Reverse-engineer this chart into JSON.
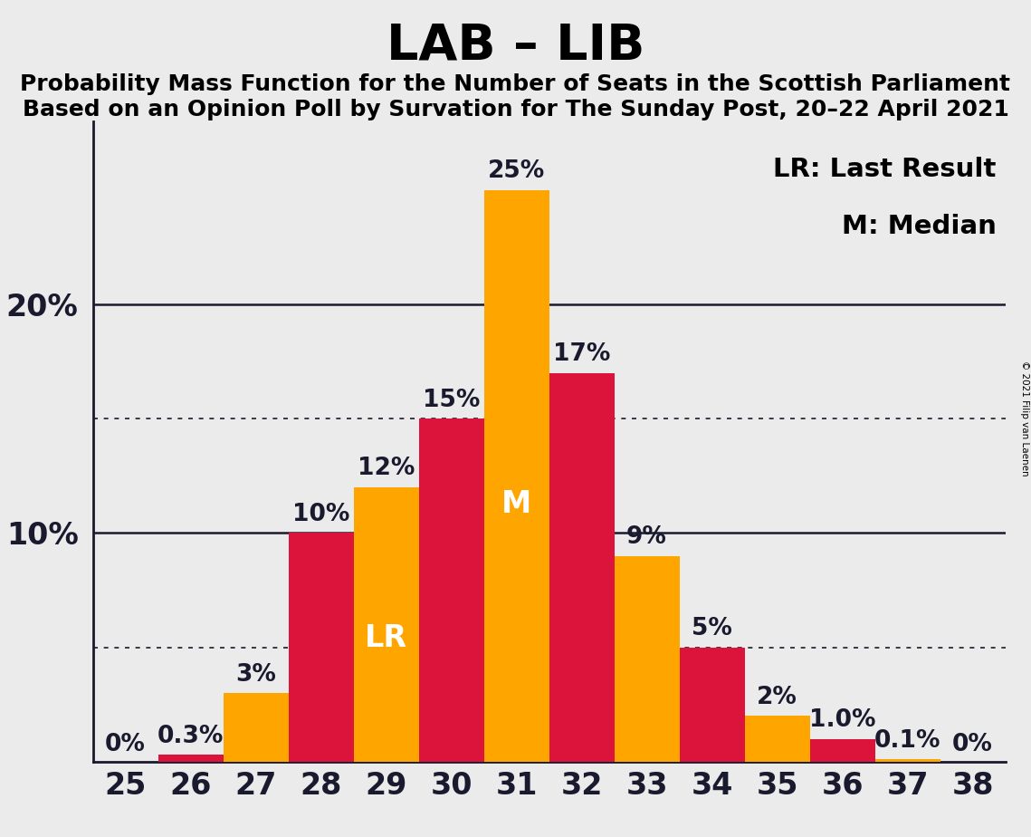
{
  "title": "LAB – LIB",
  "subtitle1": "Probability Mass Function for the Number of Seats in the Scottish Parliament",
  "subtitle2": "Based on an Opinion Poll by Survation for The Sunday Post, 20–22 April 2021",
  "copyright": "© 2021 Filip van Laenen",
  "seats": [
    25,
    26,
    27,
    28,
    29,
    30,
    31,
    32,
    33,
    34,
    35,
    36,
    37,
    38
  ],
  "values": [
    0.0,
    0.3,
    3.0,
    10.0,
    12.0,
    15.0,
    25.0,
    17.0,
    9.0,
    5.0,
    2.0,
    1.0,
    0.1,
    0.0
  ],
  "colors": [
    "#DC143C",
    "#DC143C",
    "#FFA500",
    "#DC143C",
    "#FFA500",
    "#DC143C",
    "#FFA500",
    "#DC143C",
    "#FFA500",
    "#DC143C",
    "#FFA500",
    "#DC143C",
    "#FFA500",
    "#FFA500"
  ],
  "labels": [
    "0%",
    "0.3%",
    "3%",
    "10%",
    "12%",
    "15%",
    "25%",
    "17%",
    "9%",
    "5%",
    "2%",
    "1.0%",
    "0.1%",
    "0%"
  ],
  "label_visible": [
    true,
    true,
    true,
    true,
    true,
    true,
    true,
    true,
    true,
    true,
    true,
    true,
    true,
    true
  ],
  "red_color": "#DC143C",
  "orange_color": "#FFA500",
  "background_color": "#EBEBEB",
  "bar_width": 1.0,
  "ylim_max": 28,
  "solid_yticks": [
    10,
    20
  ],
  "dotted_yticks": [
    5,
    15
  ],
  "ytick_positions": [
    10,
    20
  ],
  "ytick_labels": [
    "10%",
    "20%"
  ],
  "lr_index": 4,
  "m_index": 6,
  "lr_label": "LR",
  "m_label": "M",
  "legend_text1": "LR: Last Result",
  "legend_text2": "M: Median",
  "title_fontsize": 40,
  "subtitle_fontsize": 18,
  "tick_fontsize": 24,
  "bar_label_fontsize": 19,
  "legend_fontsize": 21,
  "bar_inner_label_fontsize": 24,
  "axis_color": "#1a1a2e"
}
